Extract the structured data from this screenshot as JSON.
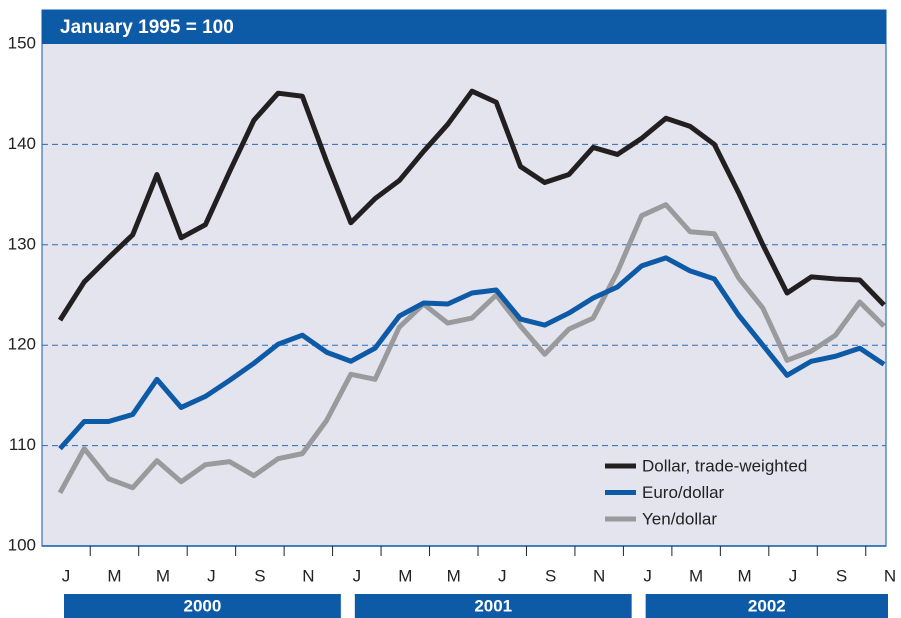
{
  "chart_data": {
    "type": "line",
    "title": "January 1995 = 100",
    "categories": [
      "J",
      null,
      "M",
      null,
      "M",
      null,
      "J",
      null,
      "S",
      null,
      "N",
      null,
      "J",
      null,
      "M",
      null,
      "M",
      null,
      "J",
      null,
      "S",
      null,
      "N",
      null,
      "J",
      null,
      "M",
      null,
      "M",
      null,
      "J",
      null,
      "S",
      null,
      "N"
    ],
    "years": [
      "2000",
      "2001",
      "2002"
    ],
    "series": [
      {
        "name": "Dollar, trade-weighted",
        "color": "#231f20",
        "values": [
          122.5,
          126.3,
          128.7,
          131.0,
          137.0,
          130.7,
          132.0,
          137.3,
          142.4,
          145.1,
          144.8,
          138.3,
          132.2,
          134.6,
          136.4,
          139.3,
          142.0,
          145.3,
          144.2,
          137.8,
          136.2,
          137.0,
          139.7,
          139.0,
          140.6,
          142.6,
          141.8,
          140.0,
          135.2,
          130.0,
          125.2,
          126.8,
          126.6,
          126.5,
          124.0
        ]
      },
      {
        "name": "Euro/dollar",
        "color": "#0d5aa7",
        "values": [
          109.7,
          112.4,
          112.4,
          113.1,
          116.6,
          113.8,
          114.9,
          116.5,
          118.2,
          120.1,
          121.0,
          119.3,
          118.4,
          119.7,
          122.9,
          124.2,
          124.1,
          125.2,
          125.5,
          122.6,
          122.0,
          123.2,
          124.7,
          125.8,
          127.9,
          128.7,
          127.4,
          126.6,
          123.0,
          120.0,
          117.0,
          118.4,
          118.9,
          119.7,
          118.1
        ]
      },
      {
        "name": "Yen/dollar",
        "color": "#9a9a9c",
        "values": [
          105.3,
          109.7,
          106.7,
          105.8,
          108.5,
          106.4,
          108.1,
          108.4,
          107.0,
          108.7,
          109.2,
          112.5,
          117.1,
          116.6,
          121.8,
          124.1,
          122.2,
          122.7,
          125.0,
          121.9,
          119.1,
          121.6,
          122.7,
          127.3,
          132.9,
          134.0,
          131.3,
          131.1,
          126.7,
          123.7,
          118.5,
          119.4,
          121.0,
          124.3,
          121.9
        ]
      }
    ],
    "ylim": [
      100,
      150
    ],
    "yticks": [
      100,
      110,
      120,
      130,
      140,
      150
    ],
    "grid": true,
    "legend": "lower right"
  }
}
